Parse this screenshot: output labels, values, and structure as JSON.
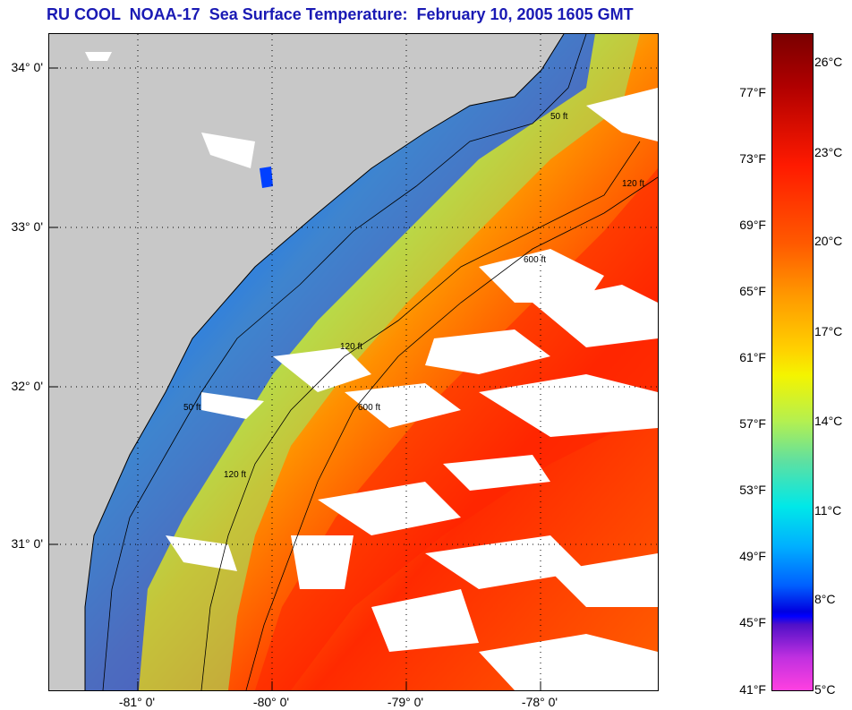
{
  "title": "RU COOL  NOAA-17  Sea Surface Temperature:  February 10, 2005 1605 GMT",
  "map": {
    "land_color": "#c8c8c8",
    "cloud_color": "#ffffff",
    "grid": "dotted",
    "lat_ticks": [
      "34° 0'",
      "33° 0'",
      "32° 0'",
      "31° 0'"
    ],
    "lon_ticks": [
      "-81° 0'",
      "-80° 0'",
      "-79° 0'",
      "-78° 0'"
    ],
    "contour_labels": [
      "50 ft",
      "120 ft",
      "600 ft"
    ]
  },
  "colorbar": {
    "fahrenheit_labels": [
      "77°F",
      "73°F",
      "69°F",
      "65°F",
      "61°F",
      "57°F",
      "53°F",
      "49°F",
      "45°F",
      "41°F"
    ],
    "celsius_labels": [
      "26°C",
      "23°C",
      "20°C",
      "17°C",
      "14°C",
      "11°C",
      "8°C",
      "5°C"
    ],
    "colors": [
      "#7a0000",
      "#ff1a00",
      "#ff9a00",
      "#f4f400",
      "#60e0a0",
      "#00e8e8",
      "#0060ff",
      "#0000e0",
      "#c030e0",
      "#ff40e0"
    ]
  }
}
